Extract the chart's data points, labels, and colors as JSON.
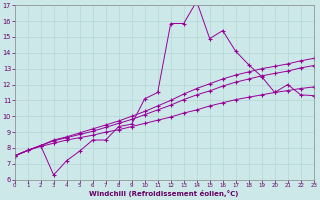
{
  "xlabel": "Windchill (Refroidissement éolien,°C)",
  "bg_color": "#cce8e8",
  "line_color": "#990099",
  "xlim": [
    0,
    23
  ],
  "ylim": [
    6,
    17
  ],
  "xticks": [
    0,
    1,
    2,
    3,
    4,
    5,
    6,
    7,
    8,
    9,
    10,
    11,
    12,
    13,
    14,
    15,
    16,
    17,
    18,
    19,
    20,
    21,
    22,
    23
  ],
  "yticks": [
    6,
    7,
    8,
    9,
    10,
    11,
    12,
    13,
    14,
    15,
    16,
    17
  ],
  "lines": [
    {
      "x": [
        0,
        1,
        2,
        3,
        4,
        5,
        6,
        7,
        8,
        9,
        10,
        11,
        12,
        13,
        14,
        15,
        16,
        17,
        18,
        19,
        20,
        21,
        22,
        23
      ],
      "y": [
        7.5,
        7.85,
        8.1,
        8.3,
        8.5,
        8.65,
        8.8,
        9.0,
        9.15,
        9.35,
        9.55,
        9.75,
        9.95,
        10.2,
        10.4,
        10.65,
        10.85,
        11.05,
        11.2,
        11.35,
        11.5,
        11.62,
        11.75,
        11.85
      ]
    },
    {
      "x": [
        0,
        1,
        2,
        3,
        4,
        5,
        6,
        7,
        8,
        9,
        10,
        11,
        12,
        13,
        14,
        15,
        16,
        17,
        18,
        19,
        20,
        21,
        22,
        23
      ],
      "y": [
        7.5,
        7.85,
        8.15,
        8.45,
        8.65,
        8.85,
        9.05,
        9.3,
        9.55,
        9.8,
        10.1,
        10.4,
        10.7,
        11.05,
        11.35,
        11.6,
        11.9,
        12.15,
        12.35,
        12.55,
        12.7,
        12.85,
        13.05,
        13.2
      ]
    },
    {
      "x": [
        0,
        1,
        2,
        3,
        4,
        5,
        6,
        7,
        8,
        9,
        10,
        11,
        12,
        13,
        14,
        15,
        16,
        17,
        18,
        19,
        20,
        21,
        22,
        23
      ],
      "y": [
        7.5,
        7.85,
        8.15,
        8.5,
        8.7,
        8.95,
        9.2,
        9.45,
        9.7,
        10.0,
        10.3,
        10.65,
        11.0,
        11.4,
        11.75,
        12.05,
        12.35,
        12.6,
        12.8,
        13.0,
        13.15,
        13.3,
        13.5,
        13.65
      ]
    },
    {
      "x": [
        0,
        2,
        3,
        4,
        5,
        6,
        7,
        8,
        9,
        10,
        11,
        12,
        13,
        14,
        15,
        16,
        17,
        18,
        19,
        20,
        21,
        22,
        23
      ],
      "y": [
        7.5,
        8.15,
        6.3,
        7.2,
        7.8,
        8.5,
        8.5,
        9.35,
        9.5,
        11.1,
        11.5,
        15.85,
        15.85,
        17.25,
        14.9,
        15.4,
        14.1,
        13.25,
        12.5,
        11.5,
        12.0,
        11.35,
        11.3
      ]
    }
  ]
}
